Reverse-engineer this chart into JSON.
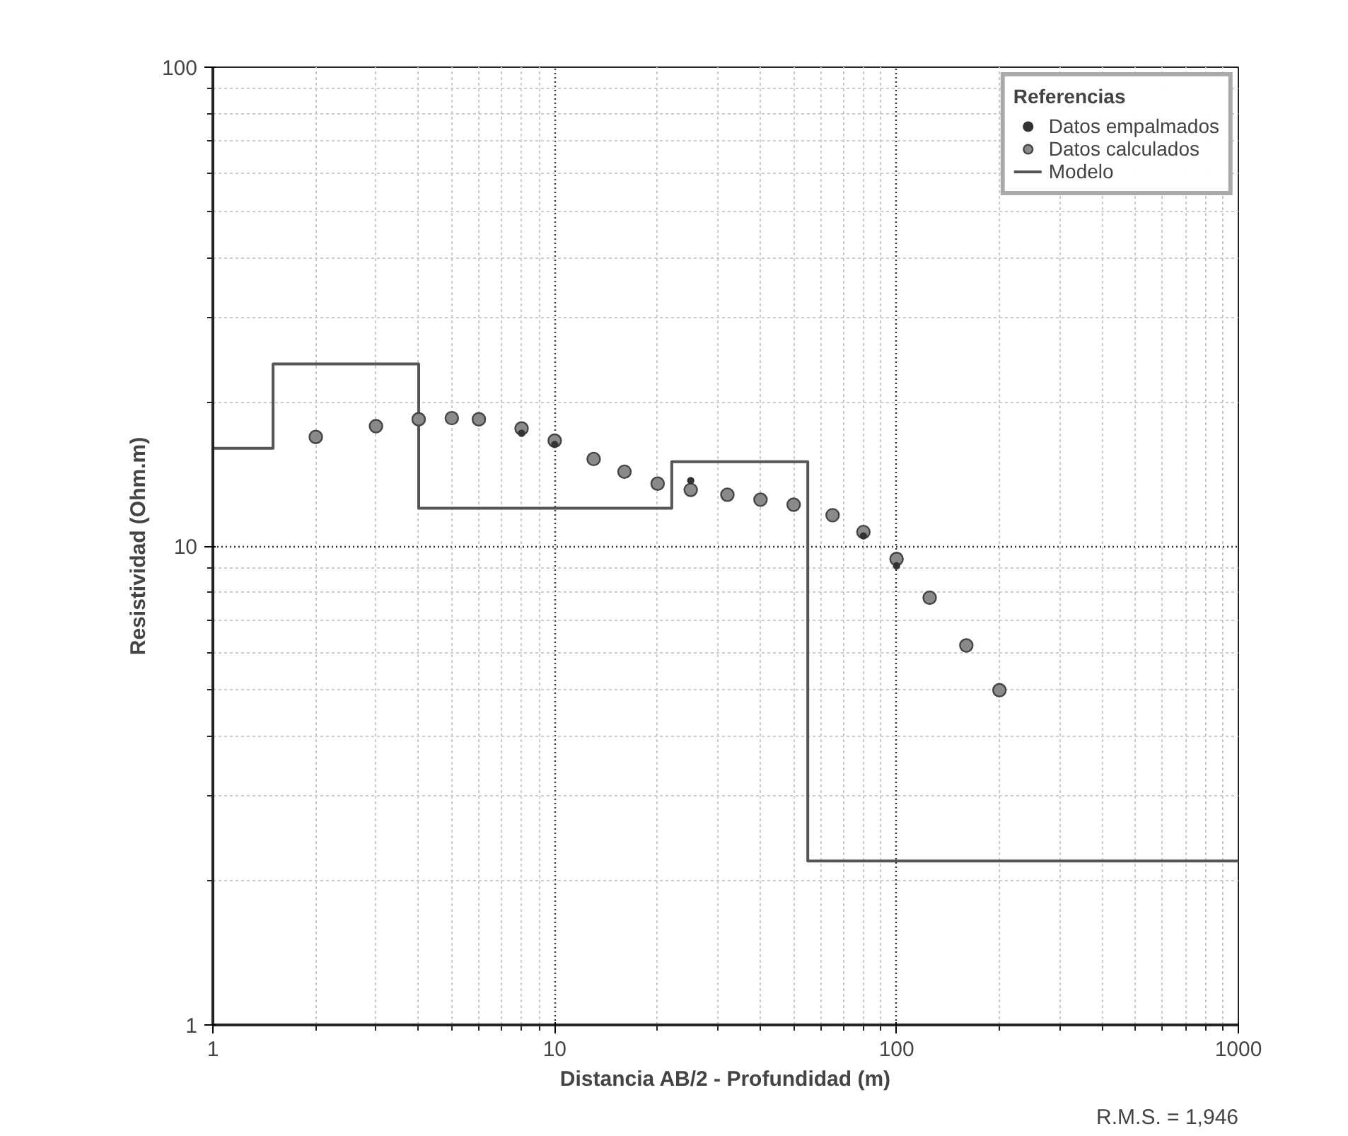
{
  "chart_data": {
    "type": "scatter",
    "xlabel": "Distancia AB/2 - Profundidad (m)",
    "ylabel": "Resistividad (Ohm.m)",
    "legend_title": "Referencias",
    "legend": "top right",
    "log": "xy",
    "grid": true,
    "xlim": [
      1,
      1000
    ],
    "ylim": [
      1,
      100
    ],
    "xticks": [
      1,
      10,
      100,
      1000
    ],
    "yticks": [
      1,
      10,
      100
    ],
    "annotations": [
      "R.M.S. = 1,946"
    ],
    "series": [
      {
        "name": "Datos empalmados",
        "marker": "circle",
        "color": "#333333",
        "x": [
          8,
          10,
          25,
          80,
          100
        ],
        "values": [
          17.2,
          16.3,
          13.7,
          10.5,
          9.1
        ]
      },
      {
        "name": "Datos calculados",
        "marker": "circle",
        "color": "#8a8a8a",
        "x": [
          2,
          3,
          4,
          5,
          6,
          8,
          10,
          13,
          16,
          20,
          25,
          32,
          40,
          50,
          65,
          80,
          100,
          125,
          160,
          200
        ],
        "values": [
          16.9,
          17.8,
          18.4,
          18.5,
          18.4,
          17.6,
          16.6,
          15.2,
          14.3,
          13.5,
          13.1,
          12.8,
          12.5,
          12.2,
          11.6,
          10.7,
          9.4,
          7.8,
          6.2,
          5.0
        ]
      },
      {
        "name": "Modelo",
        "type": "step",
        "color": "#555555",
        "x": [
          1,
          1.5,
          4,
          22,
          55,
          1000
        ],
        "values": [
          16,
          24,
          12,
          15,
          2.2,
          2.2
        ]
      }
    ]
  }
}
